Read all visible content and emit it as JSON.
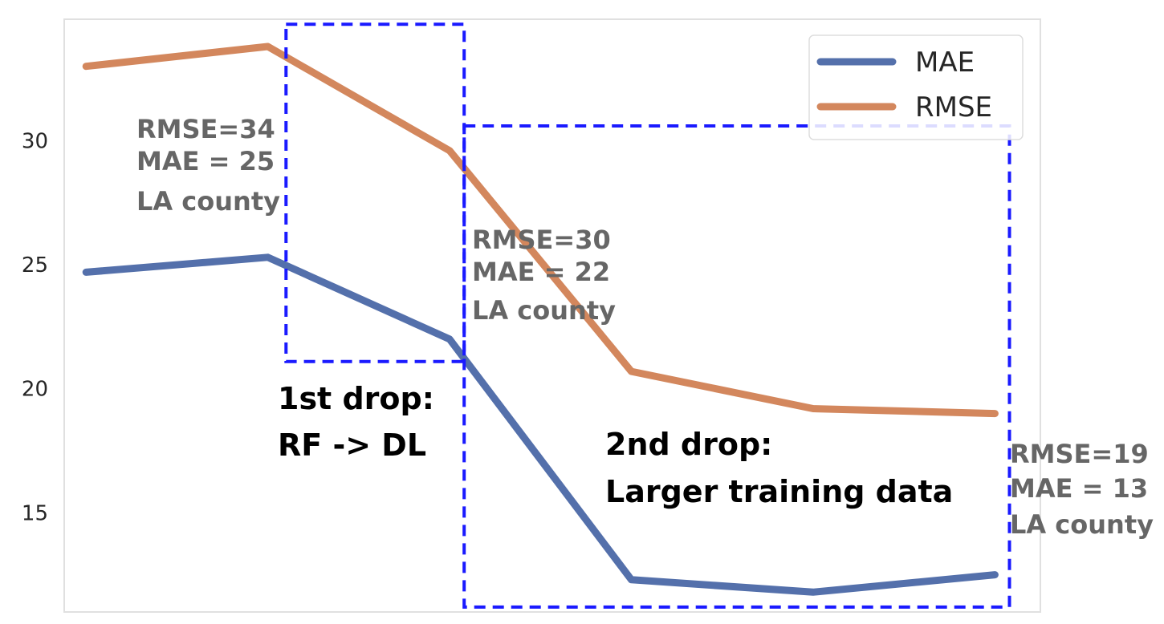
{
  "chart_data": {
    "type": "line",
    "x": [
      0,
      1,
      2,
      3,
      4,
      5
    ],
    "ylim": [
      11.0,
      34.9
    ],
    "xlim": [
      -0.12,
      5.25
    ],
    "yticks": [
      15,
      20,
      25,
      30
    ],
    "grid": false,
    "legend_position": "top-right",
    "series": [
      {
        "name": "MAE",
        "color": "#5470ab",
        "values": [
          24.7,
          25.3,
          22.0,
          12.3,
          11.8,
          12.5
        ]
      },
      {
        "name": "RMSE",
        "color": "#d3875d",
        "values": [
          33.0,
          33.8,
          29.6,
          20.7,
          19.2,
          19.0
        ]
      }
    ],
    "annotations": [
      {
        "lines": [
          "RMSE=34",
          "MAE = 25",
          "LA county"
        ],
        "style": "gray"
      },
      {
        "lines": [
          "RMSE=30",
          "MAE = 22",
          "LA county"
        ],
        "style": "gray"
      },
      {
        "lines": [
          "RMSE=19",
          "MAE = 13",
          "LA county"
        ],
        "style": "gray"
      },
      {
        "lines": [
          "1st drop:",
          "RF -> DL"
        ],
        "style": "black"
      },
      {
        "lines": [
          "2nd drop:",
          "Larger training data"
        ],
        "style": "black"
      }
    ],
    "highlight_boxes": [
      {
        "name": "first-drop-box",
        "x_range": [
          1.1,
          2.08
        ],
        "y_range": [
          21.1,
          34.7
        ],
        "color": "#1a1aff"
      },
      {
        "name": "second-drop-box",
        "x_range": [
          2.08,
          5.08
        ],
        "y_range": [
          11.2,
          30.6
        ],
        "color": "#1a1aff"
      }
    ]
  }
}
